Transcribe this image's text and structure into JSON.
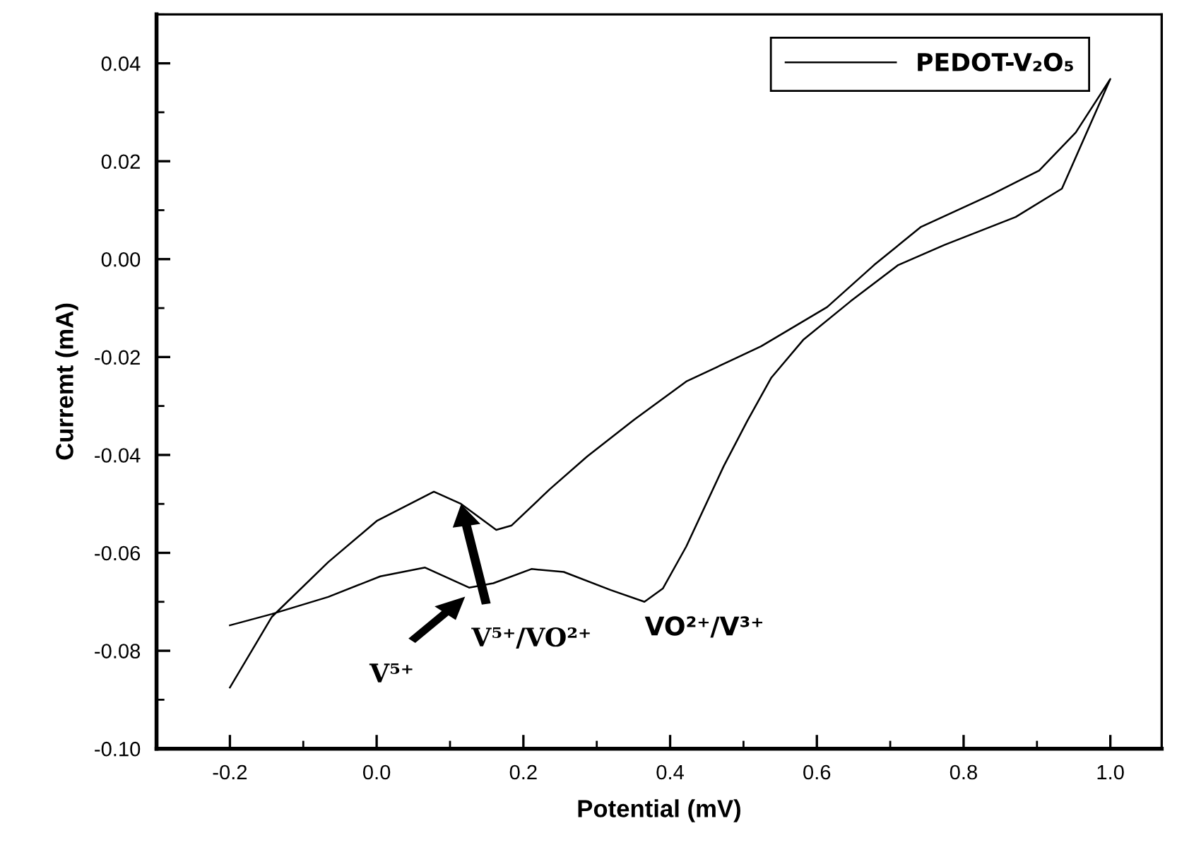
{
  "chart_data": {
    "type": "line",
    "xlabel": "Potential (mV)",
    "ylabel": "Curremt (mA)",
    "series": [
      {
        "name": "PEDOT-V₂O₅",
        "color": "#000000",
        "x": [
          -0.2,
          -0.143,
          -0.066,
          0.0,
          0.078,
          0.115,
          0.163,
          0.184,
          0.236,
          0.287,
          0.351,
          0.422,
          0.524,
          0.614,
          0.678,
          0.742,
          0.838,
          0.903,
          0.953,
          1.0,
          0.934,
          0.871,
          0.774,
          0.711,
          0.646,
          0.582,
          0.538,
          0.505,
          0.473,
          0.422,
          0.39,
          0.365,
          0.319,
          0.255,
          0.211,
          0.159,
          0.126,
          0.066,
          0.005,
          -0.066,
          -0.143,
          -0.2
        ],
        "values": [
          -0.0875,
          -0.0731,
          -0.0619,
          -0.0535,
          -0.0475,
          -0.05,
          -0.0553,
          -0.0544,
          -0.047,
          -0.0403,
          -0.0328,
          -0.025,
          -0.0178,
          -0.0098,
          -0.0012,
          0.0066,
          0.0132,
          0.0181,
          0.0259,
          0.0368,
          0.0144,
          0.0086,
          0.0029,
          -0.0012,
          -0.0086,
          -0.0164,
          -0.0242,
          -0.0331,
          -0.0423,
          -0.0587,
          -0.0673,
          -0.07,
          -0.0676,
          -0.0639,
          -0.0633,
          -0.0662,
          -0.0671,
          -0.063,
          -0.0648,
          -0.069,
          -0.0725,
          -0.0748
        ]
      }
    ],
    "annotations": [
      "V⁵⁺",
      "V⁵⁺/VO²⁺",
      "VO²⁺/V³⁺"
    ],
    "xlim": [
      -0.3,
      1.07
    ],
    "ylim": [
      -0.1,
      0.05
    ],
    "xticks": [
      -0.2,
      {
        "value": 0.0,
        "label": "0.0"
      },
      0.2,
      0.4,
      0.6,
      0.8,
      {
        "value": 1.0,
        "label": "1.0"
      }
    ],
    "yticks": [
      {
        "value": 0.04,
        "label": "0.04"
      },
      {
        "value": 0.02,
        "label": "0.02"
      },
      {
        "value": 0.0,
        "label": "0.00"
      },
      {
        "value": -0.02,
        "label": "-0.02"
      },
      {
        "value": -0.04,
        "label": "-0.04"
      },
      {
        "value": -0.06,
        "label": "-0.06"
      },
      {
        "value": -0.08,
        "label": "-0.08"
      },
      {
        "value": -0.1,
        "label": "-0.10"
      }
    ],
    "grid": false,
    "legend": "top right",
    "marker": "none",
    "line_style": "solid"
  }
}
